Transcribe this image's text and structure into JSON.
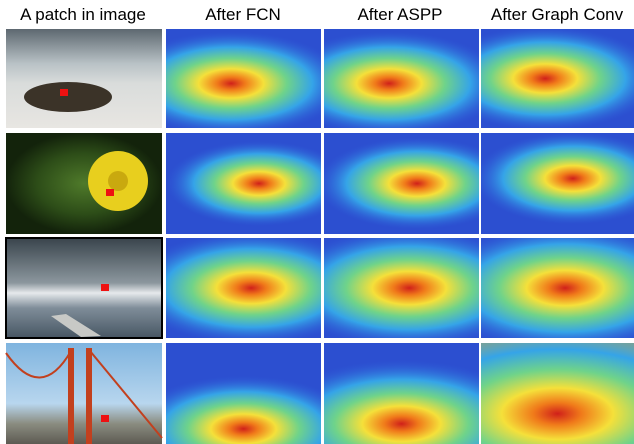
{
  "header": {
    "columns": [
      "A patch in image",
      "After FCN",
      "After ASPP",
      "After Graph Conv"
    ]
  }
}
